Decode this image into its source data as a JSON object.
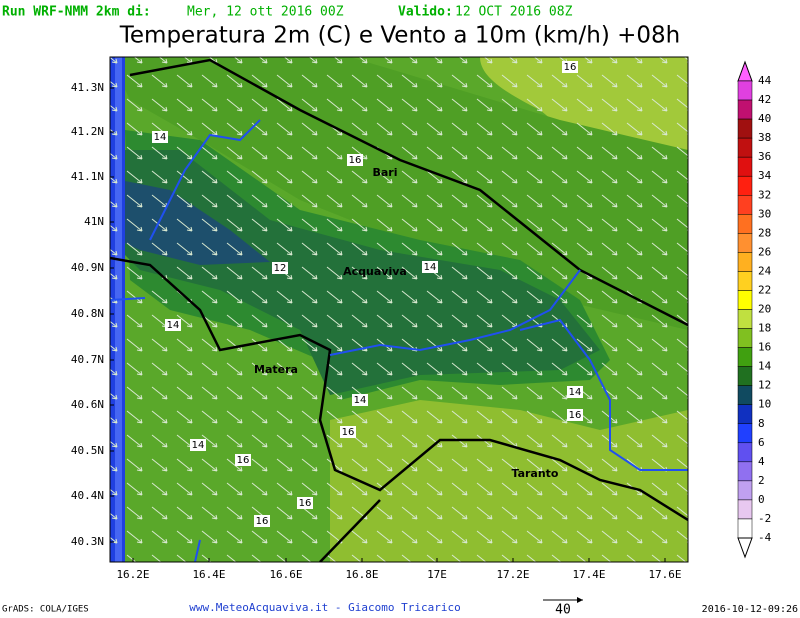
{
  "header": {
    "run": "Run WRF-NMM 2km di:",
    "run_date": "Mer, 12 ott 2016 00Z",
    "valid": "Valido:",
    "valid_date": "12 OCT 2016 08Z",
    "title": "Temperatura 2m (C) e Vento a 10m (km/h) +08h"
  },
  "map": {
    "lat_labels": [
      "41.3N",
      "41.2N",
      "41.1N",
      "41N",
      "40.9N",
      "40.8N",
      "40.7N",
      "40.6N",
      "40.5N",
      "40.4N",
      "40.3N"
    ],
    "lon_labels": [
      "16.2E",
      "16.4E",
      "16.6E",
      "16.8E",
      "17E",
      "17.2E",
      "17.4E",
      "17.6E"
    ],
    "cities": [
      "Bari",
      "Acquaviva",
      "Matera",
      "Taranto"
    ],
    "contour_labels": [
      "16",
      "14",
      "16",
      "12",
      "14",
      "14",
      "14",
      "14",
      "16",
      "16",
      "14",
      "16",
      "16",
      "16"
    ]
  },
  "colorbar": {
    "labels": [
      "44",
      "42",
      "40",
      "38",
      "36",
      "34",
      "32",
      "30",
      "28",
      "26",
      "24",
      "22",
      "20",
      "18",
      "16",
      "14",
      "12",
      "10",
      "8",
      "6",
      "4",
      "2",
      "0",
      "-2",
      "-4"
    ]
  },
  "footer": {
    "left": "GrADS: COLA/IGES",
    "center": "www.MeteoAcquaviva.it - Giacomo Tricarico",
    "scale": "40",
    "right": "2016-10-12-09:26"
  }
}
